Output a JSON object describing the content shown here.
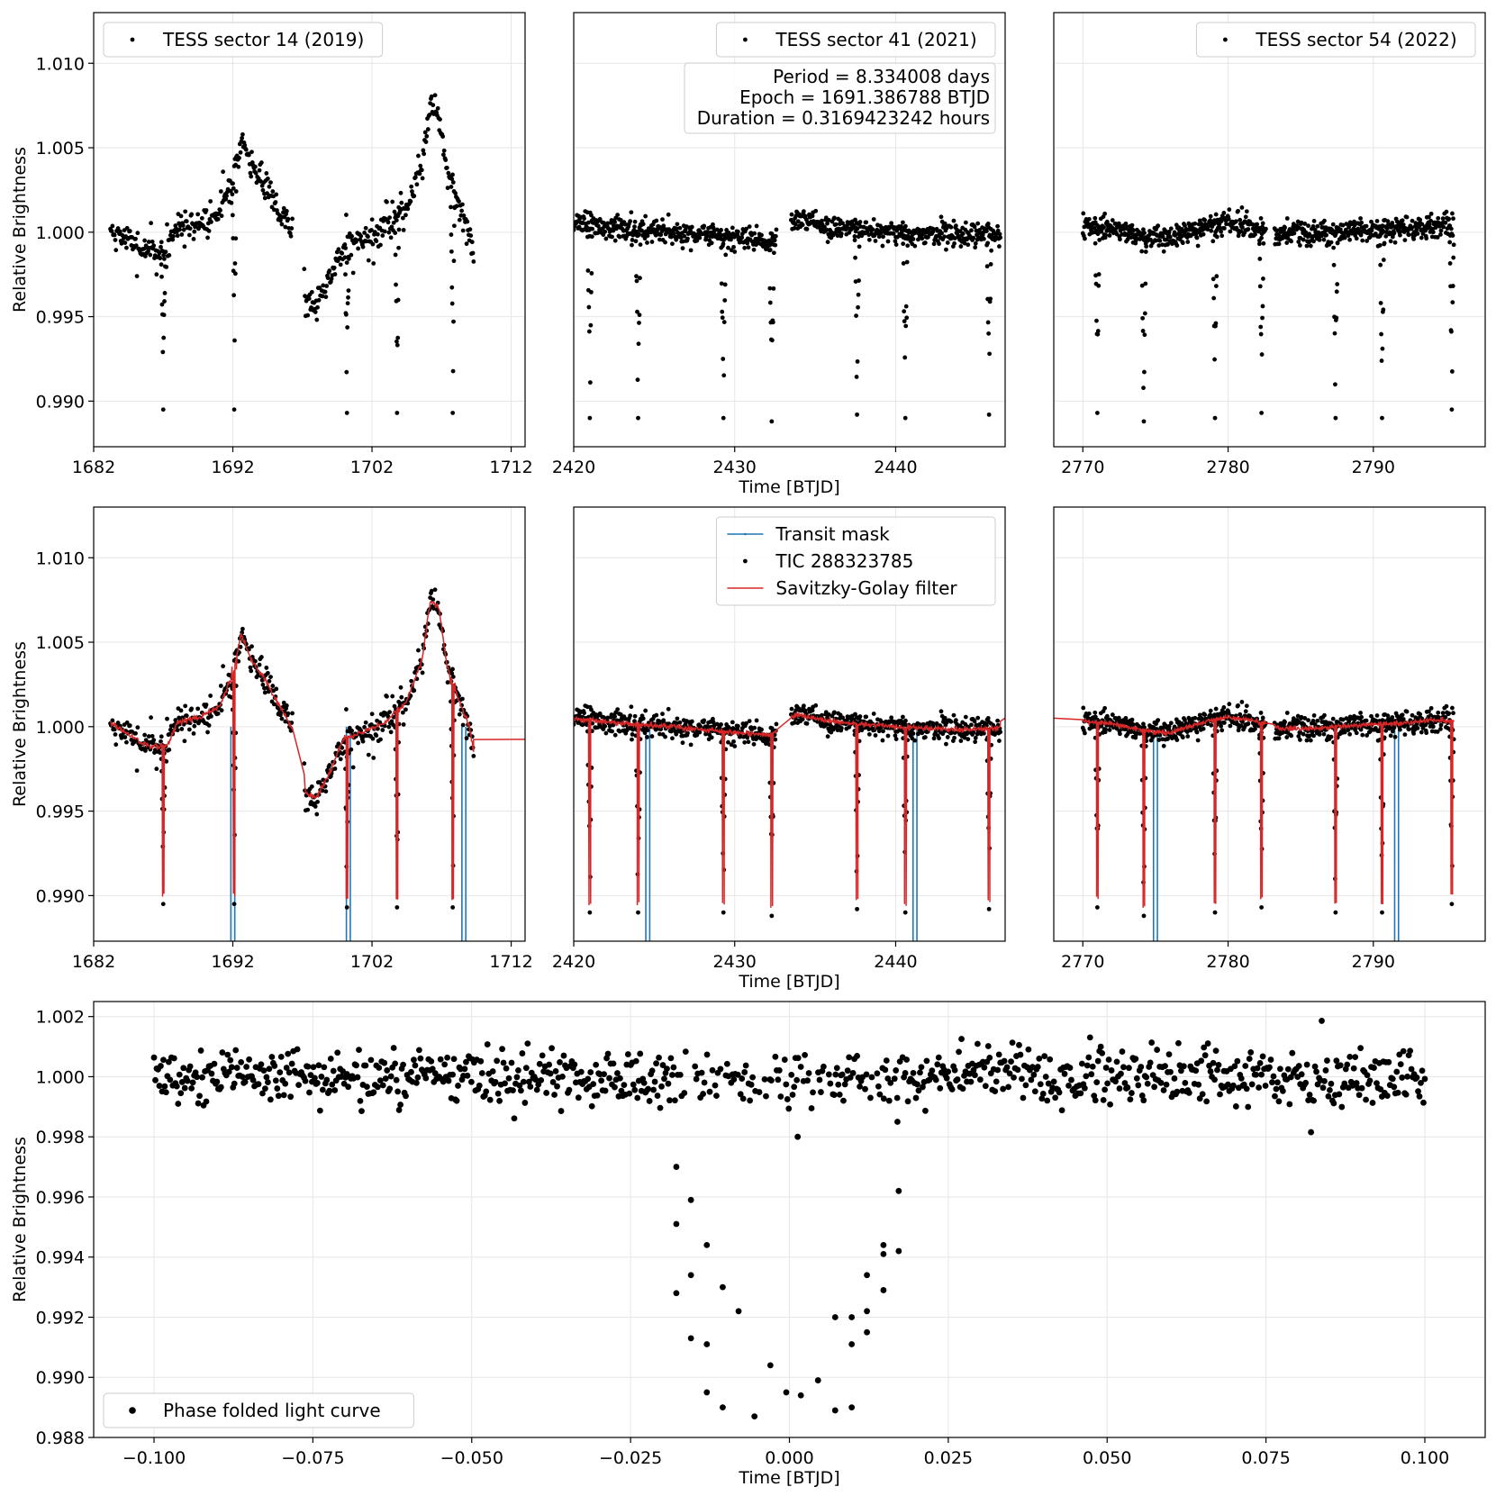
{
  "colors": {
    "points": "#000000",
    "mask": "#1f77b4",
    "filter": "#d62728",
    "grid": "#e6e6e6"
  },
  "chart_data": [
    {
      "id": "s14-raw",
      "type": "scatter",
      "ylabel": "Relative Brightness",
      "xlabel": "",
      "xlim": [
        1682,
        1713
      ],
      "ylim": [
        0.9873,
        1.013
      ],
      "xticks": [
        1682,
        1692,
        1702,
        1712
      ],
      "yticks": [
        0.99,
        0.995,
        1.0,
        1.005,
        1.01
      ],
      "legend": [
        "TESS sector 14 (2019)"
      ],
      "legend_loc": "upper-left",
      "trend": [
        [
          1683.2,
          1.0003
        ],
        [
          1684.5,
          0.9995
        ],
        [
          1686.0,
          0.9988
        ],
        [
          1687.3,
          0.9989
        ],
        [
          1688.0,
          1.0003
        ],
        [
          1689.5,
          1.0005
        ],
        [
          1691.0,
          1.0012
        ],
        [
          1692.0,
          1.003
        ],
        [
          1692.6,
          1.0055
        ],
        [
          1693.3,
          1.004
        ],
        [
          1694.5,
          1.0025
        ],
        [
          1695.5,
          1.001
        ],
        [
          1696.2,
          1.0
        ],
        [
          1697.0,
          0.9995
        ],
        [
          1697.2,
          0.996
        ],
        [
          1698.0,
          0.9958
        ],
        [
          1698.8,
          0.997
        ],
        [
          1700.0,
          0.9993
        ],
        [
          1701.5,
          0.9997
        ],
        [
          1703.0,
          1.0003
        ],
        [
          1704.5,
          1.0015
        ],
        [
          1705.6,
          1.004
        ],
        [
          1706.2,
          1.0075
        ],
        [
          1706.8,
          1.007
        ],
        [
          1707.4,
          1.0035
        ],
        [
          1708.3,
          1.0015
        ],
        [
          1709.0,
          1.0
        ],
        [
          1709.3,
          0.9985
        ]
      ],
      "noise": 0.0007,
      "spikes": 0.0015,
      "gaps": [
        [
          1696.3,
          1697.1
        ]
      ],
      "dips": [
        [
          1687.0,
          0.9895
        ],
        [
          1692.1,
          0.9895
        ],
        [
          1700.2,
          0.9893
        ],
        [
          1703.8,
          0.9893
        ],
        [
          1707.8,
          0.9893
        ]
      ],
      "seed": 11,
      "n": 520
    },
    {
      "id": "s41-raw",
      "type": "scatter",
      "ylabel": "",
      "xlabel": "Time [BTJD]",
      "xlim": [
        2420,
        2446.8
      ],
      "ylim": [
        0.9873,
        1.013
      ],
      "xticks": [
        2420,
        2430,
        2440
      ],
      "yticks": [],
      "legend": [
        "TESS sector 41 (2021)"
      ],
      "legend_loc": "upper-right",
      "info_box": [
        "Period = 8.334008 days",
        "Epoch = 1691.386788 BTJD",
        "Duration = 0.3169423242 hours"
      ],
      "trend": [
        [
          2420.0,
          1.0005
        ],
        [
          2423.0,
          1.0002
        ],
        [
          2426.0,
          1.0
        ],
        [
          2429.5,
          0.9997
        ],
        [
          2432.2,
          0.9995
        ],
        [
          2433.8,
          1.0007
        ],
        [
          2436.0,
          1.0003
        ],
        [
          2440.0,
          1.0
        ],
        [
          2444.0,
          0.9998
        ],
        [
          2446.5,
          0.9999
        ]
      ],
      "noise": 0.0006,
      "spikes": 0.0005,
      "gaps": [
        [
          2432.6,
          2433.5
        ]
      ],
      "dips": [
        [
          2421.0,
          0.989
        ],
        [
          2424.0,
          0.989
        ],
        [
          2429.3,
          0.989
        ],
        [
          2432.3,
          0.9888
        ],
        [
          2437.6,
          0.9892
        ],
        [
          2440.6,
          0.989
        ],
        [
          2445.8,
          0.9892
        ]
      ],
      "seed": 23,
      "n": 780
    },
    {
      "id": "s54-raw",
      "type": "scatter",
      "ylabel": "",
      "xlabel": "",
      "xlim": [
        2768.0,
        2797.7
      ],
      "ylim": [
        0.9873,
        1.013
      ],
      "xticks": [
        2770,
        2780,
        2790
      ],
      "yticks": [],
      "legend": [
        "TESS sector 54 (2022)"
      ],
      "legend_loc": "upper-right",
      "trend": [
        [
          2770.0,
          1.0003
        ],
        [
          2772.0,
          1.0002
        ],
        [
          2774.0,
          0.9998
        ],
        [
          2776.0,
          0.9996
        ],
        [
          2778.0,
          1.0002
        ],
        [
          2780.0,
          1.0006
        ],
        [
          2782.0,
          1.0003
        ],
        [
          2783.5,
          0.9999
        ],
        [
          2786.0,
          0.9999
        ],
        [
          2789.0,
          1.0001
        ],
        [
          2792.0,
          1.0002
        ],
        [
          2794.0,
          1.0004
        ],
        [
          2795.5,
          1.0003
        ]
      ],
      "noise": 0.0006,
      "spikes": 0.0005,
      "gaps": [
        [
          2782.6,
          2783.2
        ]
      ],
      "dips": [
        [
          2771.0,
          0.9893
        ],
        [
          2774.2,
          0.9888
        ],
        [
          2779.1,
          0.989
        ],
        [
          2782.3,
          0.9893
        ],
        [
          2787.4,
          0.989
        ],
        [
          2790.6,
          0.989
        ],
        [
          2795.4,
          0.9895
        ]
      ],
      "seed": 37,
      "n": 760
    },
    {
      "id": "s14-filter",
      "type": "scatter+line",
      "ylabel": "Relative Brightness",
      "xlabel": "",
      "xlim": [
        1682,
        1713
      ],
      "ylim": [
        0.9873,
        1.013
      ],
      "xticks": [
        1682,
        1692,
        1702,
        1712
      ],
      "yticks": [
        0.99,
        0.995,
        1.0,
        1.005,
        1.01
      ],
      "legend": [],
      "legend_loc": "",
      "trend": [
        [
          1683.2,
          1.0003
        ],
        [
          1684.5,
          0.9995
        ],
        [
          1686.0,
          0.9988
        ],
        [
          1687.3,
          0.9989
        ],
        [
          1688.0,
          1.0003
        ],
        [
          1689.5,
          1.0005
        ],
        [
          1691.0,
          1.0012
        ],
        [
          1692.0,
          1.003
        ],
        [
          1692.6,
          1.0055
        ],
        [
          1693.3,
          1.004
        ],
        [
          1694.5,
          1.0025
        ],
        [
          1695.5,
          1.001
        ],
        [
          1696.2,
          1.0
        ],
        [
          1697.0,
          0.9995
        ],
        [
          1697.2,
          0.996
        ],
        [
          1698.0,
          0.9958
        ],
        [
          1698.8,
          0.997
        ],
        [
          1700.0,
          0.9993
        ],
        [
          1701.5,
          0.9997
        ],
        [
          1703.0,
          1.0003
        ],
        [
          1704.5,
          1.0015
        ],
        [
          1705.6,
          1.004
        ],
        [
          1706.2,
          1.0075
        ],
        [
          1706.8,
          1.007
        ],
        [
          1707.4,
          1.0035
        ],
        [
          1708.3,
          1.0015
        ],
        [
          1709.0,
          1.0
        ],
        [
          1709.3,
          0.9985
        ]
      ],
      "noise": 0.0007,
      "spikes": 0.0015,
      "gaps": [
        [
          1696.3,
          1697.1
        ]
      ],
      "dips": [
        [
          1687.0,
          0.9895
        ],
        [
          1692.1,
          0.9895
        ],
        [
          1700.2,
          0.9893
        ],
        [
          1703.8,
          0.9893
        ],
        [
          1707.8,
          0.9893
        ]
      ],
      "mask": [
        1692.0,
        1700.3,
        1708.6
      ],
      "filter_tail": 0.9992,
      "seed": 11,
      "n": 520
    },
    {
      "id": "s41-filter",
      "type": "scatter+line",
      "ylabel": "",
      "xlabel": "Time [BTJD]",
      "xlim": [
        2420,
        2446.8
      ],
      "ylim": [
        0.9873,
        1.013
      ],
      "xticks": [
        2420,
        2430,
        2440
      ],
      "yticks": [],
      "legend": [
        "Transit mask",
        "TIC 288323785",
        "Savitzky-Golay filter"
      ],
      "legend_loc": "upper-right",
      "trend": [
        [
          2420.0,
          1.0005
        ],
        [
          2423.0,
          1.0002
        ],
        [
          2426.0,
          1.0
        ],
        [
          2429.5,
          0.9997
        ],
        [
          2432.2,
          0.9995
        ],
        [
          2433.8,
          1.0007
        ],
        [
          2436.0,
          1.0003
        ],
        [
          2440.0,
          1.0
        ],
        [
          2444.0,
          0.9998
        ],
        [
          2446.5,
          0.9999
        ]
      ],
      "noise": 0.0006,
      "spikes": 0.0005,
      "gaps": [
        [
          2432.6,
          2433.5
        ]
      ],
      "dips": [
        [
          2421.0,
          0.989
        ],
        [
          2424.0,
          0.989
        ],
        [
          2429.3,
          0.989
        ],
        [
          2432.3,
          0.9888
        ],
        [
          2437.6,
          0.9892
        ],
        [
          2440.6,
          0.989
        ],
        [
          2445.8,
          0.9892
        ]
      ],
      "mask": [
        2424.6,
        2441.2
      ],
      "filter_tail": 1.0004,
      "seed": 23,
      "n": 780
    },
    {
      "id": "s54-filter",
      "type": "scatter+line",
      "ylabel": "",
      "xlabel": "",
      "xlim": [
        2768.0,
        2797.7
      ],
      "ylim": [
        0.9873,
        1.013
      ],
      "xticks": [
        2770,
        2780,
        2790
      ],
      "yticks": [],
      "legend": [],
      "legend_loc": "",
      "trend": [
        [
          2770.0,
          1.0003
        ],
        [
          2772.0,
          1.0002
        ],
        [
          2774.0,
          0.9998
        ],
        [
          2776.0,
          0.9996
        ],
        [
          2778.0,
          1.0002
        ],
        [
          2780.0,
          1.0006
        ],
        [
          2782.0,
          1.0003
        ],
        [
          2783.5,
          0.9999
        ],
        [
          2786.0,
          0.9999
        ],
        [
          2789.0,
          1.0001
        ],
        [
          2792.0,
          1.0002
        ],
        [
          2794.0,
          1.0004
        ],
        [
          2795.5,
          1.0003
        ]
      ],
      "noise": 0.0006,
      "spikes": 0.0005,
      "gaps": [
        [
          2782.6,
          2783.2
        ]
      ],
      "dips": [
        [
          2771.0,
          0.9893
        ],
        [
          2774.2,
          0.9888
        ],
        [
          2779.1,
          0.989
        ],
        [
          2782.3,
          0.9893
        ],
        [
          2787.4,
          0.989
        ],
        [
          2790.6,
          0.989
        ],
        [
          2795.4,
          0.9895
        ]
      ],
      "mask": [
        2775.0,
        2791.6
      ],
      "filter_head": 1.0004,
      "seed": 37,
      "n": 760
    },
    {
      "id": "phase-folded",
      "type": "scatter",
      "ylabel": "Relative Brightness",
      "xlabel": "Time [BTJD]",
      "xlim": [
        -0.1095,
        0.1095
      ],
      "ylim": [
        0.988,
        1.0025
      ],
      "xticks": [
        -0.1,
        -0.075,
        -0.05,
        -0.025,
        0.0,
        0.025,
        0.05,
        0.075,
        0.1
      ],
      "xtick_labels": [
        "−0.100",
        "−0.075",
        "−0.050",
        "−0.025",
        "0.000",
        "0.025",
        "0.050",
        "0.075",
        "0.100"
      ],
      "yticks": [
        0.988,
        0.99,
        0.992,
        0.994,
        0.996,
        0.998,
        1.0,
        1.002
      ],
      "legend": [
        "Phase folded light curve"
      ],
      "legend_loc": "lower-left",
      "in_transit": [
        [
          -0.0178,
          0.997
        ],
        [
          -0.0178,
          0.9951
        ],
        [
          -0.0178,
          0.9928
        ],
        [
          -0.0155,
          0.9959
        ],
        [
          -0.0155,
          0.9934
        ],
        [
          -0.0155,
          0.9913
        ],
        [
          -0.013,
          0.9944
        ],
        [
          -0.013,
          0.9911
        ],
        [
          -0.013,
          0.9895
        ],
        [
          -0.0105,
          0.993
        ],
        [
          -0.0105,
          0.989
        ],
        [
          -0.008,
          0.9922
        ],
        [
          -0.0055,
          0.9887
        ],
        [
          -0.003,
          0.9904
        ],
        [
          -0.0005,
          0.9895
        ],
        [
          0.0018,
          0.9894
        ],
        [
          0.0045,
          0.9899
        ],
        [
          0.0072,
          0.992
        ],
        [
          0.0072,
          0.9889
        ],
        [
          0.0098,
          0.992
        ],
        [
          0.0098,
          0.9911
        ],
        [
          0.0098,
          0.989
        ],
        [
          0.0122,
          0.9934
        ],
        [
          0.0122,
          0.9922
        ],
        [
          0.0122,
          0.9915
        ],
        [
          0.0148,
          0.9944
        ],
        [
          0.0148,
          0.9941
        ],
        [
          0.0148,
          0.9929
        ],
        [
          0.0172,
          0.9962
        ],
        [
          0.0172,
          0.9942
        ],
        [
          0.0005,
          0.9994
        ],
        [
          0.0013,
          0.998
        ],
        [
          0.0085,
          0.9992
        ],
        [
          0.017,
          0.9985
        ]
      ],
      "seed": 53,
      "n": 950
    }
  ]
}
